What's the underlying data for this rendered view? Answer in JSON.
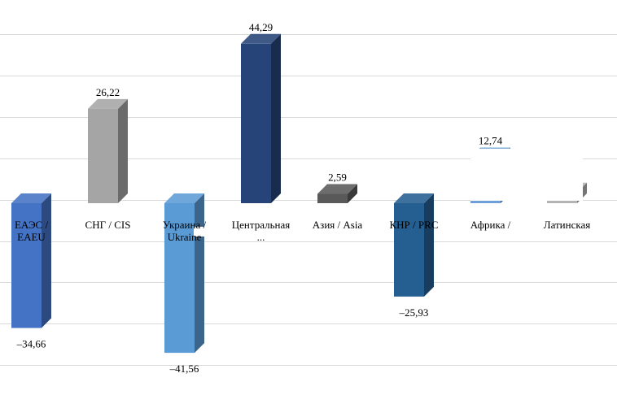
{
  "chart_data": {
    "type": "bar",
    "categories": [
      [
        "ЕАЭС /",
        "EAEU"
      ],
      [
        "СНГ / CIS"
      ],
      [
        "Украина /",
        "Ukraine"
      ],
      [
        "Центральная",
        "..."
      ],
      [
        "Азия / Asia"
      ],
      [
        "КНР / PRC"
      ],
      [
        "Африка /"
      ],
      [
        "Латинская"
      ]
    ],
    "values": [
      -34.66,
      26.22,
      -41.56,
      44.29,
      2.59,
      -25.93,
      12.74,
      3.0
    ],
    "value_labels": [
      "–34,66",
      "26,22",
      "–41,56",
      "44,29",
      "2,59",
      "–25,93",
      "12,74",
      ""
    ],
    "colors": [
      "#4472c4",
      "#a5a5a5",
      "#5b9bd5",
      "#264478",
      "#595959",
      "#255e91",
      "#6f9fd8",
      "#b4b4b4"
    ],
    "ylim": [
      -47,
      50
    ],
    "grid": true,
    "title": "",
    "xlabel": "",
    "ylabel": ""
  }
}
